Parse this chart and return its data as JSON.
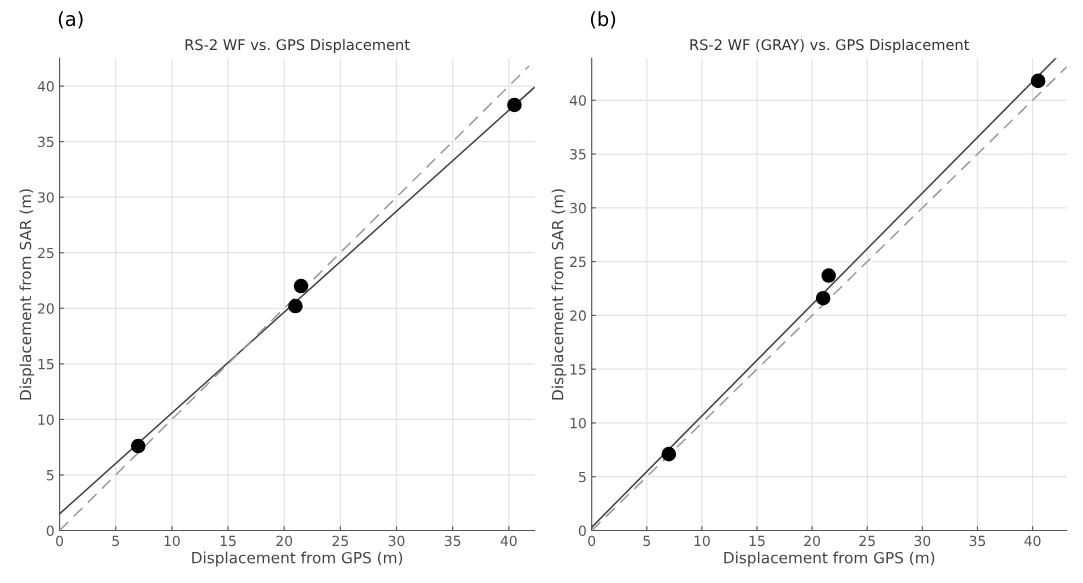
{
  "chart_data": [
    {
      "type": "scatter",
      "title": "RS-2 WF vs. GPS Displacement",
      "xlabel": "Displacement from GPS (m)",
      "ylabel": "Displacement from SAR (m)",
      "annotations": [
        "(a)"
      ],
      "xlim": [
        0,
        42.3
      ],
      "ylim": [
        0,
        42.5
      ],
      "xticks": [
        0,
        5,
        10,
        15,
        20,
        25,
        30,
        35,
        40
      ],
      "yticks": [
        0,
        5,
        10,
        15,
        20,
        25,
        30,
        35,
        40
      ],
      "grid": true,
      "legend": false,
      "series": [
        {
          "color": "#000000",
          "marker": "circle",
          "x": [
            7,
            21,
            21.5,
            40.5
          ],
          "values": [
            7.6,
            20.2,
            22.0,
            38.3
          ]
        },
        {
          "type": "line",
          "color": "#404040",
          "line_style": "solid",
          "x": [
            0,
            42.3
          ],
          "values": [
            1.5,
            39.9
          ]
        },
        {
          "type": "line",
          "color": "#999999",
          "line_style": "dashed",
          "x": [
            0,
            41.8
          ],
          "values": [
            0,
            41.8
          ]
        }
      ]
    },
    {
      "type": "scatter",
      "title": "RS-2 WF (GRAY) vs. GPS Displacement",
      "xlabel": "Displacement from GPS (m)",
      "ylabel": "Displacement from SAR (m)",
      "annotations": [
        "(b)"
      ],
      "xlim": [
        0,
        43.1
      ],
      "ylim": [
        0,
        43.9
      ],
      "xticks": [
        0,
        5,
        10,
        15,
        20,
        25,
        30,
        35,
        40
      ],
      "yticks": [
        0,
        5,
        10,
        15,
        20,
        25,
        30,
        35,
        40
      ],
      "grid": true,
      "legend": false,
      "series": [
        {
          "color": "#000000",
          "marker": "circle",
          "x": [
            7,
            21,
            21.5,
            40.5
          ],
          "values": [
            7.1,
            21.6,
            23.7,
            41.8
          ]
        },
        {
          "type": "line",
          "color": "#404040",
          "line_style": "solid",
          "x": [
            0,
            42.1
          ],
          "values": [
            0.3,
            43.9
          ]
        },
        {
          "type": "line",
          "color": "#999999",
          "line_style": "dashed",
          "x": [
            0,
            43.1
          ],
          "values": [
            0,
            43.1
          ]
        }
      ]
    }
  ]
}
